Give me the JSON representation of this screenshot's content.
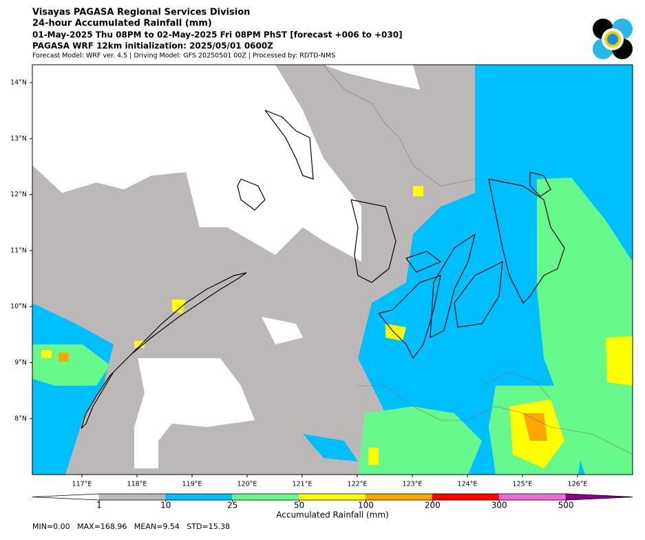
{
  "header": {
    "lines": [
      "Visayas PAGASA Regional Services Division",
      "24-hour Accumulated Rainfall (mm)",
      "01-May-2025 Thu 08PM to 02-May-2025 Fri 08PM PhST [forecast +006 to +030]",
      "PAGASA WRF 12km initialization: 2025/05/01 0600Z",
      "Forecast Model: WRF ver. 4.5 | Driving Model: GFS 20250501 00Z | Processed by: RDTD-NMS"
    ]
  },
  "map": {
    "lat_labels": [
      "14°N",
      "13°N",
      "12°N",
      "11°N",
      "10°N",
      "9°N",
      "8°N"
    ],
    "lon_labels": [
      "117°E",
      "118°E",
      "119°E",
      "120°E",
      "121°E",
      "122°E",
      "123°E",
      "124°E",
      "125°E",
      "126°E"
    ]
  },
  "colorbar": {
    "levels": [
      1,
      10,
      25,
      50,
      100,
      200,
      300,
      500
    ],
    "colors": [
      "#ffffff",
      "#bcb8b8",
      "#00bfff",
      "#66f88a",
      "#ffff00",
      "#ffa500",
      "#ff0000",
      "#f26ad6",
      "#8b008b"
    ],
    "label": "Accumulated Rainfall (mm)"
  },
  "stats": "MIN=0.00   MAX=168.96   MEAN=9.54   STD=15.38"
}
